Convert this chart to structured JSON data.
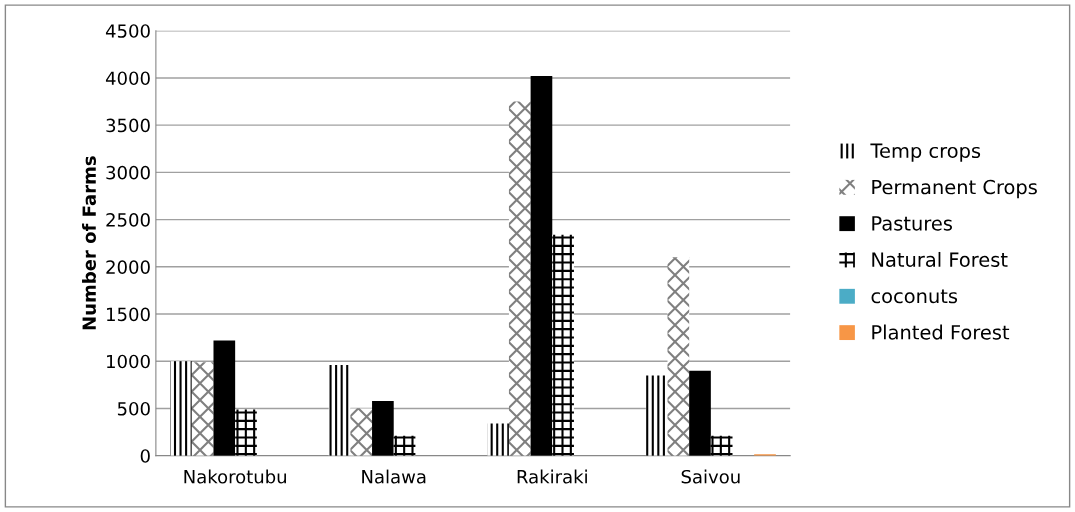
{
  "chart_data": {
    "type": "bar",
    "ylabel": "Number of Farms",
    "categories": [
      "Nakorotubu",
      "Nalawa",
      "Rakiraki",
      "Saivou"
    ],
    "series": [
      {
        "name": "Temp crops",
        "color": "#000000",
        "values": [
          1000,
          960,
          340,
          850
        ]
      },
      {
        "name": "Permanent Crops",
        "color": "#808080",
        "values": [
          990,
          500,
          3750,
          2100
        ]
      },
      {
        "name": "Pastures",
        "color": "#000000",
        "values": [
          1220,
          580,
          4020,
          900
        ]
      },
      {
        "name": "Natural Forest",
        "color": "#000000",
        "values": [
          490,
          210,
          2340,
          210
        ]
      },
      {
        "name": "coconuts",
        "color": "#4bacc6",
        "values": [
          0,
          0,
          0,
          0
        ]
      },
      {
        "name": "Planted Forest",
        "color": "#f79646",
        "values": [
          0,
          0,
          0,
          15
        ]
      }
    ],
    "ylim": [
      0,
      4500
    ],
    "yticks": [
      0,
      500,
      1000,
      1500,
      2000,
      2500,
      3000,
      3500,
      4000,
      4500
    ],
    "grid": "y",
    "legend": "right"
  }
}
